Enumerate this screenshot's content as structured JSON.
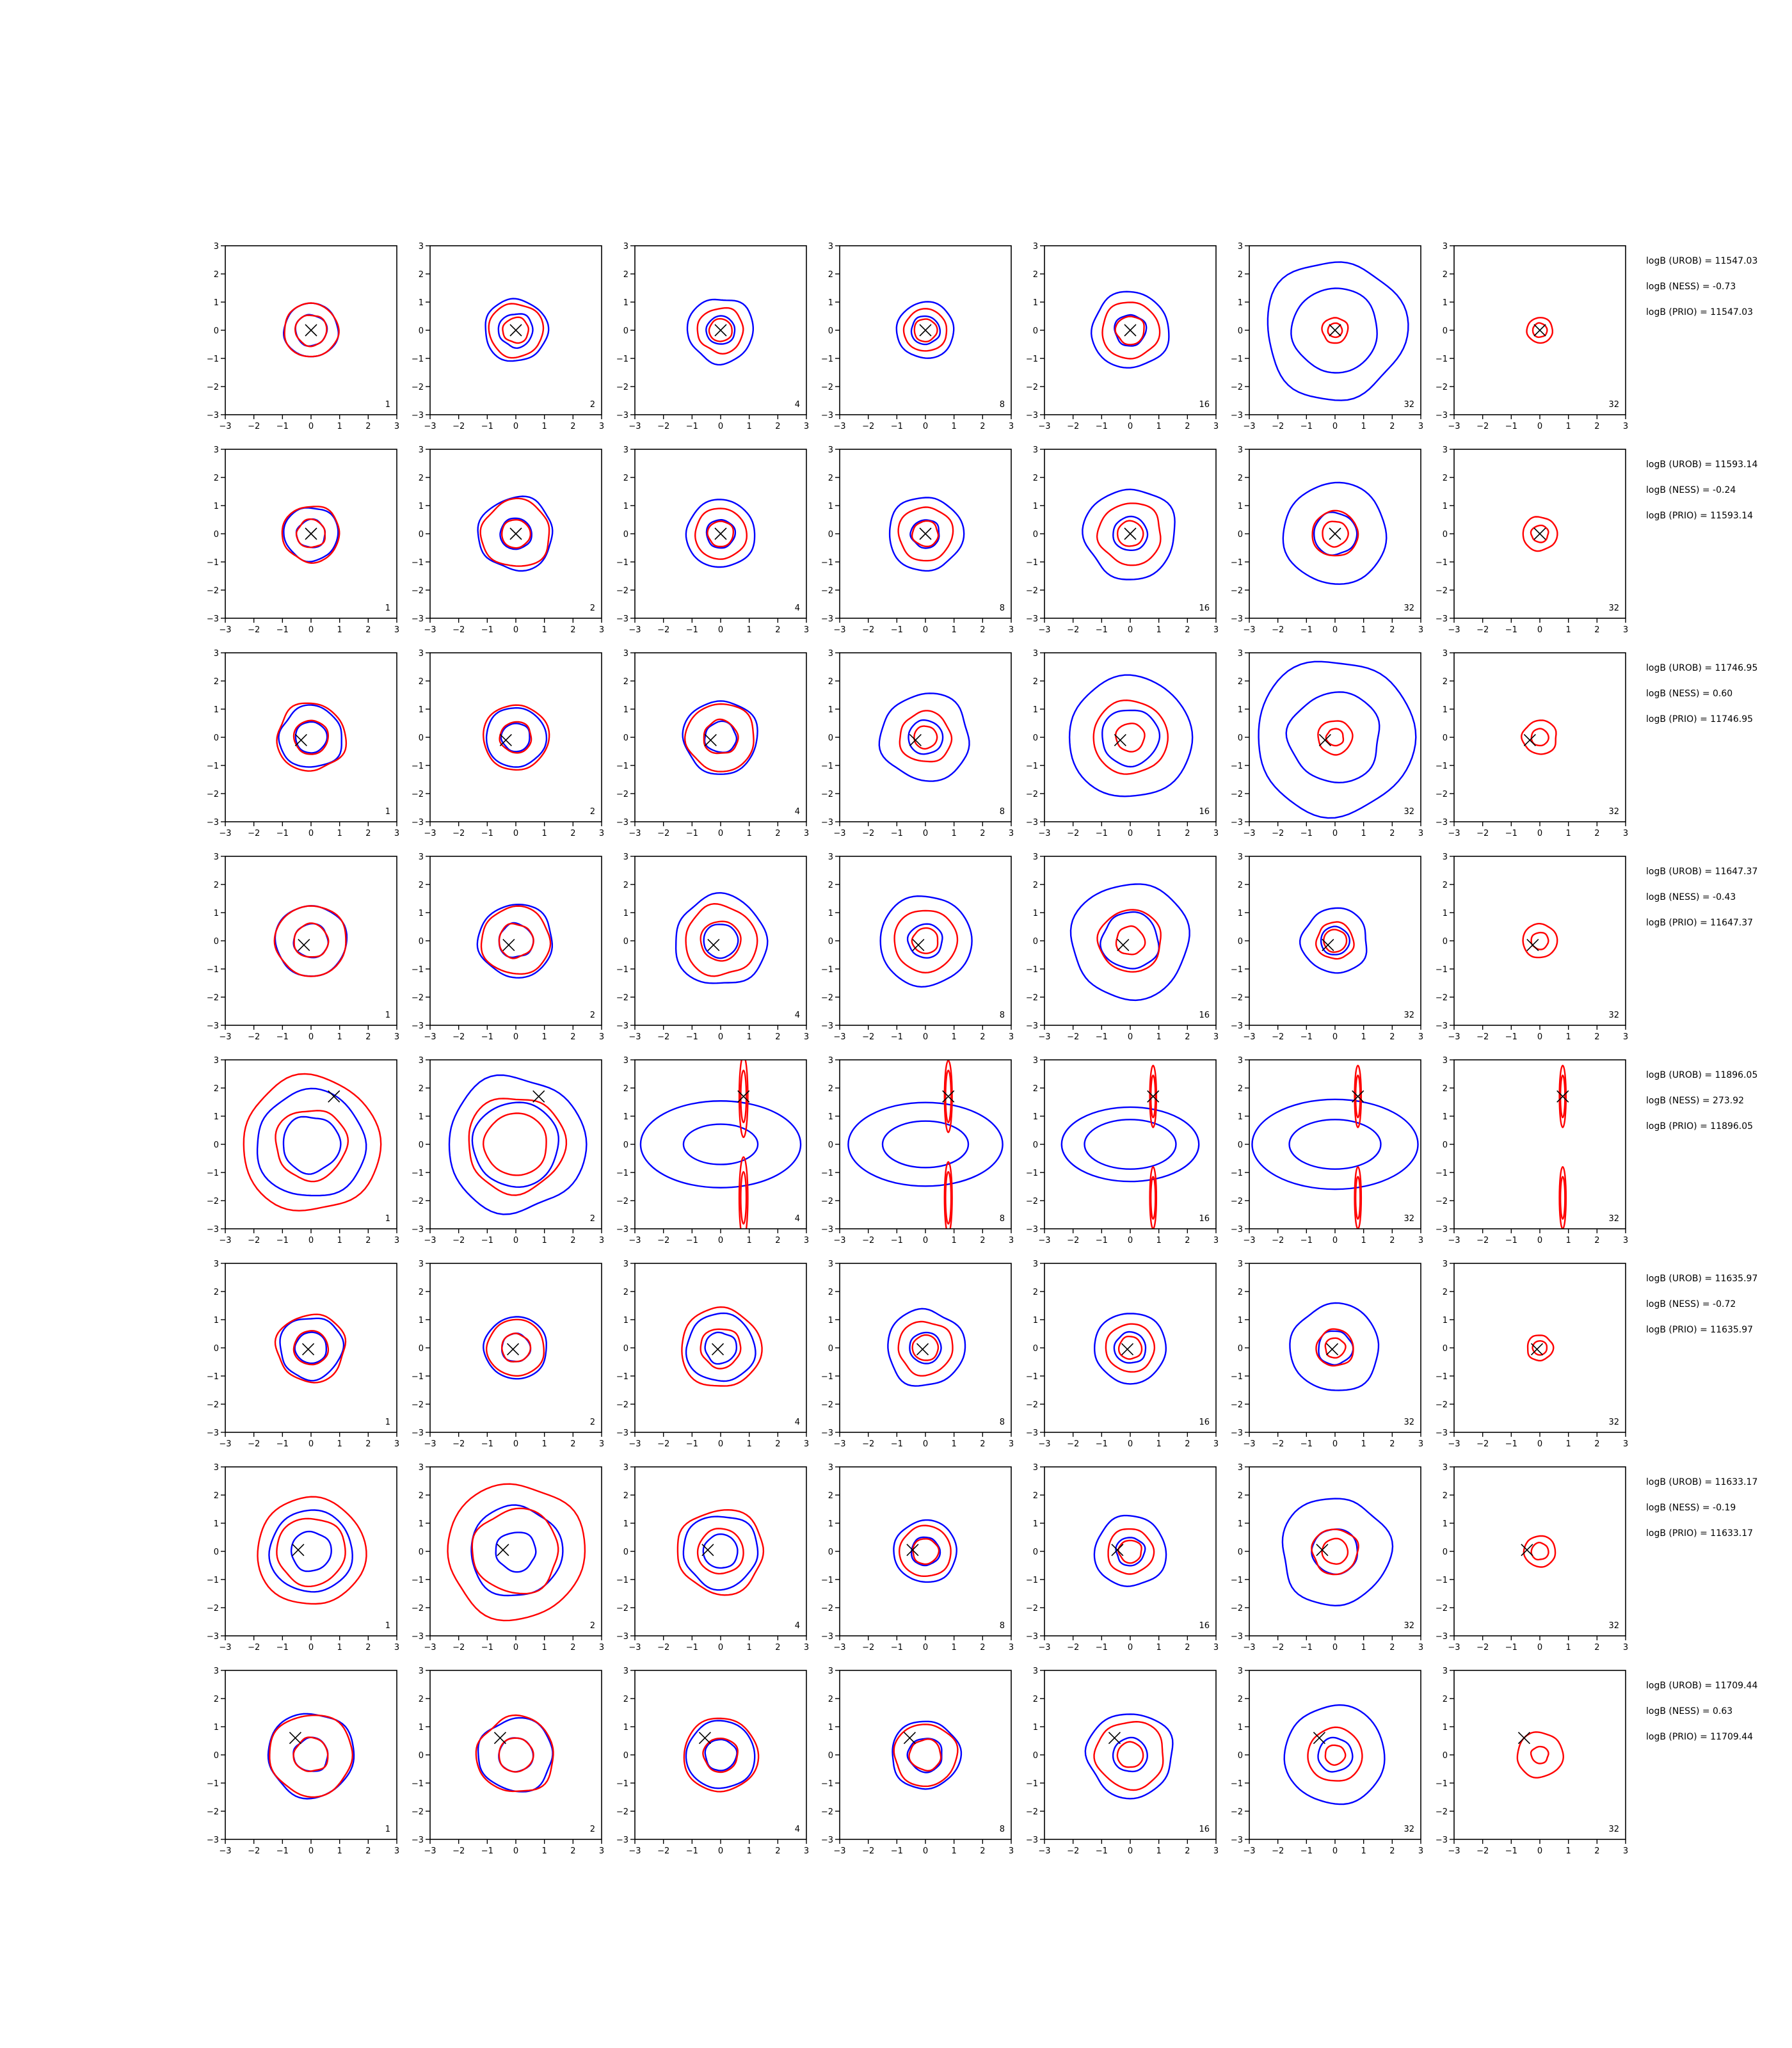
{
  "chart_data": {
    "type": "contour",
    "xlim": [
      -3,
      3
    ],
    "ylim": [
      -3,
      3
    ],
    "xticks": [
      "−3",
      "−2",
      "−1",
      "0",
      "1",
      "2",
      "3"
    ],
    "yticks": [
      "−3",
      "−2",
      "−1",
      "0",
      "1",
      "2",
      "3"
    ],
    "grid": false,
    "colors": {
      "blue": "#0000ff",
      "red": "#ff0000",
      "marker": "#000000"
    },
    "columns": [
      "1",
      "2",
      "4",
      "8",
      "16",
      "32",
      "32"
    ],
    "rows": [
      {
        "marker": [
          0.0,
          0.0
        ],
        "stats": [
          "logB (UROB) = 11547.03",
          "logB (NESS) = -0.73",
          "logB (PRIO) = 11547.03"
        ],
        "contours": [
          {
            "blue": [
              0.95,
              0.55
            ],
            "red": [
              0.95,
              0.55
            ]
          },
          {
            "blue": [
              1.1,
              0.6
            ],
            "red": [
              0.95,
              0.45
            ]
          },
          {
            "blue": [
              1.15,
              0.5
            ],
            "red": [
              0.8,
              0.4
            ]
          },
          {
            "blue": [
              1.0,
              0.5
            ],
            "red": [
              0.75,
              0.4
            ]
          },
          {
            "blue": [
              1.35,
              0.55
            ],
            "red": [
              1.0,
              0.5
            ]
          },
          {
            "blue": [
              2.45,
              1.5
            ],
            "red": [
              0.45,
              0.25
            ]
          },
          {
            "blue": [],
            "red": [
              0.45,
              0.25
            ]
          }
        ]
      },
      {
        "marker": [
          0.0,
          0.0
        ],
        "stats": [
          "logB (UROB) = 11593.14",
          "logB (NESS) = -0.24",
          "logB (PRIO) = 11593.14"
        ],
        "contours": [
          {
            "blue": [
              0.95,
              0.5
            ],
            "red": [
              1.0,
              0.5
            ]
          },
          {
            "blue": [
              1.3,
              0.55
            ],
            "red": [
              1.2,
              0.5
            ]
          },
          {
            "blue": [
              1.2,
              0.5
            ],
            "red": [
              0.9,
              0.45
            ]
          },
          {
            "blue": [
              1.3,
              0.5
            ],
            "red": [
              0.95,
              0.45
            ]
          },
          {
            "blue": [
              1.6,
              0.6
            ],
            "red": [
              1.1,
              0.45
            ]
          },
          {
            "blue": [
              1.8,
              0.75
            ],
            "red": [
              0.8,
              0.45
            ]
          },
          {
            "blue": [],
            "red": [
              0.6,
              0.3
            ]
          }
        ]
      },
      {
        "marker": [
          -0.35,
          -0.1
        ],
        "stats": [
          "logB (UROB) = 11746.95",
          "logB (NESS) = 0.60",
          "logB (PRIO) = 11746.95"
        ],
        "contours": [
          {
            "blue": [
              1.1,
              0.55
            ],
            "red": [
              1.2,
              0.6
            ]
          },
          {
            "blue": [
              1.05,
              0.5
            ],
            "red": [
              1.15,
              0.55
            ]
          },
          {
            "blue": [
              1.3,
              0.55
            ],
            "red": [
              1.2,
              0.6
            ]
          },
          {
            "blue": [
              1.55,
              0.6
            ],
            "red": [
              0.9,
              0.4
            ]
          },
          {
            "blue": [
              2.15,
              1.0
            ],
            "red": [
              1.3,
              0.5
            ]
          },
          {
            "blue": [
              2.75,
              1.6
            ],
            "red": [
              0.6,
              0.3
            ]
          },
          {
            "blue": [],
            "red": [
              0.6,
              0.3
            ]
          }
        ]
      },
      {
        "marker": [
          -0.25,
          -0.15
        ],
        "stats": [
          "logB (UROB) = 11647.37",
          "logB (NESS) = -0.43",
          "logB (PRIO) = 11647.37"
        ],
        "contours": [
          {
            "blue": [
              1.25,
              0.6
            ],
            "red": [
              1.25,
              0.6
            ]
          },
          {
            "blue": [
              1.3,
              0.6
            ],
            "red": [
              1.2,
              0.6
            ]
          },
          {
            "blue": [
              1.6,
              0.6
            ],
            "red": [
              1.25,
              0.7
            ]
          },
          {
            "blue": [
              1.6,
              0.6
            ],
            "red": [
              1.1,
              0.45
            ]
          },
          {
            "blue": [
              2.05,
              1.0
            ],
            "red": [
              1.1,
              0.5
            ]
          },
          {
            "blue": [
              1.15,
              0.5
            ],
            "red": [
              0.65,
              0.4
            ]
          },
          {
            "blue": [],
            "red": [
              0.6,
              0.3
            ]
          }
        ]
      },
      {
        "marker": [
          0.8,
          1.7
        ],
        "stats": [
          "logB (UROB) = 11896.05",
          "logB (NESS) = 273.92",
          "logB (PRIO) = 11896.05"
        ],
        "contours": [
          {
            "blue": [
              1.9,
              1.0
            ],
            "red": [
              2.4,
              1.25
            ]
          },
          {
            "blue": [
              2.4,
              1.5
            ],
            "red": [
              1.7,
              1.1
            ]
          },
          {
            "blue": [
              2.8,
              1.3
            ],
            "red": [
              0.3,
              0.15
            ]
          },
          {
            "blue": [
              2.7,
              1.5
            ],
            "red": [
              0.25,
              0.15
            ]
          },
          {
            "blue": [
              2.4,
              1.6
            ],
            "red": [
              0.2,
              0.1
            ]
          },
          {
            "blue": [
              2.9,
              1.6
            ],
            "red": [
              0.2,
              0.1
            ]
          },
          {
            "blue": [],
            "red": [
              0.2,
              0.1
            ]
          }
        ]
      },
      {
        "marker": [
          -0.1,
          -0.05
        ],
        "stats": [
          "logB (UROB) = 11635.97",
          "logB (NESS) = -0.72",
          "logB (PRIO) = 11635.97"
        ],
        "contours": [
          {
            "blue": [
              1.1,
              0.55
            ],
            "red": [
              1.2,
              0.6
            ]
          },
          {
            "blue": [
              1.1,
              0.5
            ],
            "red": [
              1.0,
              0.5
            ]
          },
          {
            "blue": [
              1.2,
              0.55
            ],
            "red": [
              1.4,
              0.7
            ]
          },
          {
            "blue": [
              1.35,
              0.55
            ],
            "red": [
              0.95,
              0.45
            ]
          },
          {
            "blue": [
              1.25,
              0.55
            ],
            "red": [
              0.85,
              0.4
            ]
          },
          {
            "blue": [
              1.55,
              0.6
            ],
            "red": [
              0.65,
              0.35
            ]
          },
          {
            "blue": [],
            "red": [
              0.45,
              0.25
            ]
          }
        ]
      },
      {
        "marker": [
          -0.45,
          0.05
        ],
        "stats": [
          "logB (UROB) = 11633.17",
          "logB (NESS) = -0.19",
          "logB (PRIO) = 11633.17"
        ],
        "contours": [
          {
            "blue": [
              1.45,
              0.7
            ],
            "red": [
              1.9,
              1.2
            ]
          },
          {
            "blue": [
              1.6,
              0.7
            ],
            "red": [
              2.4,
              1.5
            ]
          },
          {
            "blue": [
              1.3,
              0.6
            ],
            "red": [
              1.5,
              0.8
            ]
          },
          {
            "blue": [
              1.1,
              0.5
            ],
            "red": [
              0.9,
              0.45
            ]
          },
          {
            "blue": [
              1.25,
              0.5
            ],
            "red": [
              0.8,
              0.4
            ]
          },
          {
            "blue": [
              1.9,
              0.8
            ],
            "red": [
              0.8,
              0.45
            ]
          },
          {
            "blue": [],
            "red": [
              0.55,
              0.3
            ]
          }
        ]
      },
      {
        "marker": [
          -0.55,
          0.6
        ],
        "stats": [
          "logB (UROB) = 11709.44",
          "logB (NESS) = 0.63",
          "logB (PRIO) = 11709.44"
        ],
        "contours": [
          {
            "blue": [
              1.5,
              0.6
            ],
            "red": [
              1.45,
              0.6
            ]
          },
          {
            "blue": [
              1.3,
              0.6
            ],
            "red": [
              1.35,
              0.6
            ]
          },
          {
            "blue": [
              1.2,
              0.55
            ],
            "red": [
              1.3,
              0.6
            ]
          },
          {
            "blue": [
              1.2,
              0.6
            ],
            "red": [
              1.1,
              0.55
            ]
          },
          {
            "blue": [
              1.5,
              0.6
            ],
            "red": [
              1.2,
              0.45
            ]
          },
          {
            "blue": [
              1.75,
              0.6
            ],
            "red": [
              0.95,
              0.35
            ]
          },
          {
            "blue": [],
            "red": [
              0.8,
              0.3
            ]
          }
        ]
      }
    ]
  }
}
